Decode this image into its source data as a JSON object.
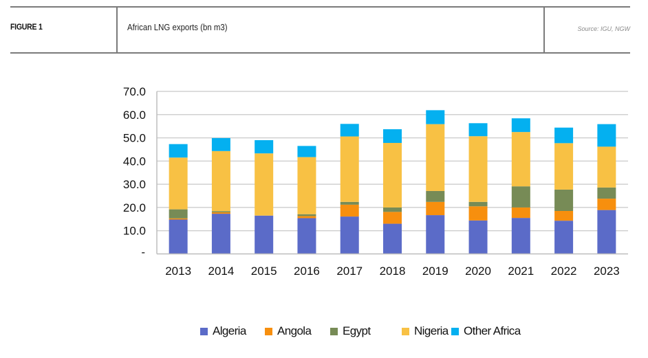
{
  "header": {
    "figure_label": "FIGURE 1",
    "title": "African LNG exports (bn m3)",
    "source": "Source: IGU, NGW"
  },
  "chart_data": {
    "type": "bar",
    "stacked": true,
    "title": "African LNG exports (bn m3)",
    "xlabel": "",
    "ylabel": "",
    "ylim": [
      0,
      70
    ],
    "yticks": [
      0,
      10,
      20,
      30,
      40,
      50,
      60,
      70
    ],
    "ytick_labels": [
      "-",
      "10.0",
      "20.0",
      "30.0",
      "40.0",
      "50.0",
      "60.0",
      "70.0"
    ],
    "grid": true,
    "legend_position": "bottom",
    "categories": [
      "2013",
      "2014",
      "2015",
      "2016",
      "2017",
      "2018",
      "2019",
      "2020",
      "2021",
      "2022",
      "2023"
    ],
    "series": [
      {
        "name": "Algeria",
        "color": "#5b6bc8",
        "values": [
          14.8,
          17.3,
          16.5,
          15.4,
          16.1,
          13.0,
          16.7,
          14.4,
          15.5,
          14.3,
          18.9
        ]
      },
      {
        "name": "Angola",
        "color": "#f78f0e",
        "values": [
          0.5,
          0.6,
          0.0,
          0.9,
          5.1,
          5.1,
          5.7,
          6.1,
          4.5,
          4.2,
          4.9
        ]
      },
      {
        "name": "Egypt",
        "color": "#778b56",
        "values": [
          3.9,
          0.5,
          0.0,
          0.8,
          1.2,
          1.9,
          4.7,
          1.9,
          9.1,
          9.2,
          4.8
        ]
      },
      {
        "name": "Nigeria",
        "color": "#f8c144",
        "values": [
          22.3,
          25.9,
          26.8,
          24.6,
          28.2,
          27.8,
          28.8,
          28.3,
          23.4,
          20.0,
          17.6
        ]
      },
      {
        "name": "Other Africa",
        "color": "#04b0f0",
        "values": [
          5.8,
          5.6,
          5.7,
          4.8,
          5.4,
          5.9,
          6.0,
          5.6,
          5.9,
          6.7,
          9.7
        ]
      }
    ]
  }
}
